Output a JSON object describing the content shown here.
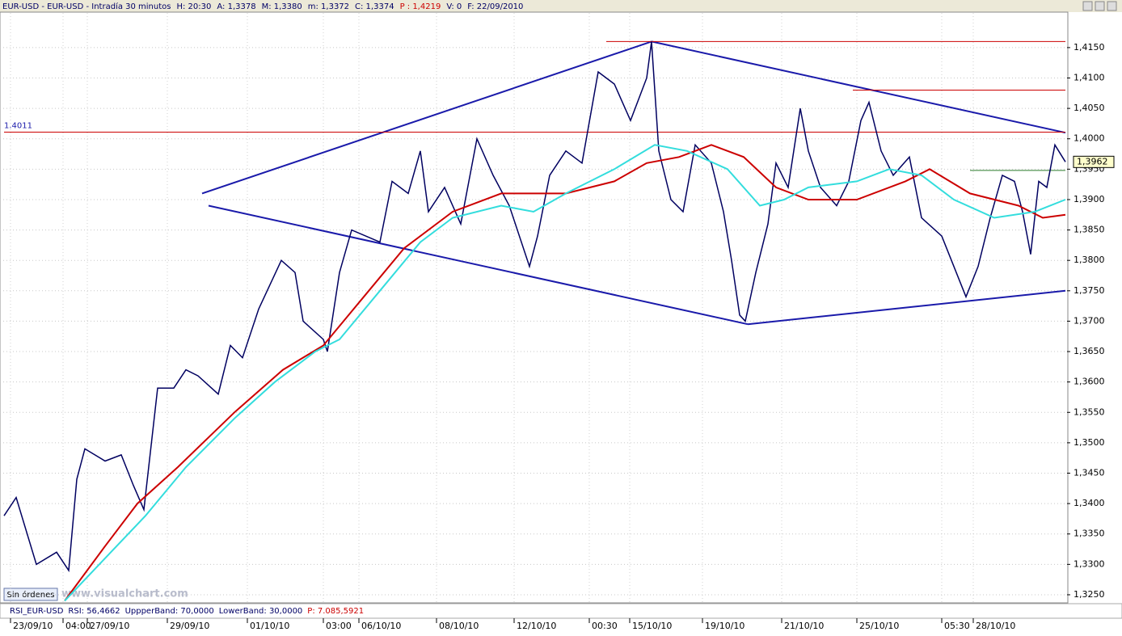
{
  "header": {
    "parts": [
      "EUR-USD - EUR-USD - Intradía 30 minutos",
      "H: 20:30",
      "A: 1,3378",
      "M: 1,3380",
      "m: 1,3372",
      "C: 1,3374",
      "P : 1,4219",
      "V: 0",
      "F: 22/09/2010"
    ]
  },
  "footer": {
    "orders": "Sin órdenes",
    "watermark": "www.visualchart.com",
    "rsi": [
      "RSI_EUR-USD",
      "RSI: 56,4662",
      "UppperBand: 70,0000",
      "LowerBand: 30,0000",
      "P: 7.085,5921"
    ]
  },
  "chart_data": {
    "type": "line",
    "xlim": [
      0,
      1320
    ],
    "ylim": [
      1.3238,
      1.4207
    ],
    "grid": true,
    "xticks": [
      {
        "value": 13,
        "label": "23/09/10"
      },
      {
        "value": 78,
        "label": "04:00"
      },
      {
        "value": 108,
        "label": "27/09/10"
      },
      {
        "value": 207,
        "label": "29/09/10"
      },
      {
        "value": 306,
        "label": "01/10/10"
      },
      {
        "value": 400,
        "label": "03:00"
      },
      {
        "value": 444,
        "label": "06/10/10"
      },
      {
        "value": 540,
        "label": "08/10/10"
      },
      {
        "value": 636,
        "label": "12/10/10"
      },
      {
        "value": 729,
        "label": "00:30"
      },
      {
        "value": 779,
        "label": "15/10/10"
      },
      {
        "value": 869,
        "label": "19/10/10"
      },
      {
        "value": 967,
        "label": "21/10/10"
      },
      {
        "value": 1060,
        "label": "25/10/10"
      },
      {
        "value": 1165,
        "label": "05:30"
      },
      {
        "value": 1204,
        "label": "28/10/10"
      }
    ],
    "yticks": [
      {
        "value": 1.325,
        "label": "1,3250"
      },
      {
        "value": 1.33,
        "label": "1,3300"
      },
      {
        "value": 1.335,
        "label": "1,3350"
      },
      {
        "value": 1.34,
        "label": "1,3400"
      },
      {
        "value": 1.345,
        "label": "1,3450"
      },
      {
        "value": 1.35,
        "label": "1,3500"
      },
      {
        "value": 1.355,
        "label": "1,3550"
      },
      {
        "value": 1.36,
        "label": "1,3600"
      },
      {
        "value": 1.365,
        "label": "1,3650"
      },
      {
        "value": 1.37,
        "label": "1,3700"
      },
      {
        "value": 1.375,
        "label": "1,3750"
      },
      {
        "value": 1.38,
        "label": "1,3800"
      },
      {
        "value": 1.385,
        "label": "1,3850"
      },
      {
        "value": 1.39,
        "label": "1,3900"
      },
      {
        "value": 1.395,
        "label": "1,3950"
      },
      {
        "value": 1.4,
        "label": "1,4000"
      },
      {
        "value": 1.405,
        "label": "1,4050"
      },
      {
        "value": 1.41,
        "label": "1,4100"
      },
      {
        "value": 1.415,
        "label": "1,4150"
      }
    ],
    "series": [
      {
        "color": "#000060",
        "x": [
          5,
          20,
          45,
          70,
          85,
          95,
          105,
          130,
          150,
          165,
          178,
          195,
          215,
          230,
          245,
          270,
          285,
          300,
          320,
          348,
          365,
          375,
          400,
          405,
          420,
          435,
          470,
          485,
          505,
          520,
          530,
          550,
          570,
          590,
          610,
          630,
          655,
          665,
          680,
          700,
          720,
          740,
          760,
          780,
          800,
          806,
          815,
          830,
          845,
          860,
          880,
          895,
          905,
          915,
          922,
          935,
          950,
          960,
          975,
          990,
          1000,
          1015,
          1035,
          1050,
          1065,
          1075,
          1090,
          1105,
          1125,
          1140,
          1165,
          1180,
          1195,
          1210,
          1225,
          1240,
          1255,
          1265,
          1275,
          1285,
          1295,
          1305,
          1318
        ],
        "values": [
          1.338,
          1.341,
          1.33,
          1.332,
          1.329,
          1.344,
          1.349,
          1.347,
          1.348,
          1.343,
          1.339,
          1.359,
          1.359,
          1.362,
          1.361,
          1.358,
          1.366,
          1.364,
          1.372,
          1.38,
          1.378,
          1.37,
          1.367,
          1.365,
          1.378,
          1.385,
          1.383,
          1.393,
          1.391,
          1.398,
          1.388,
          1.392,
          1.386,
          1.4,
          1.394,
          1.389,
          1.379,
          1.384,
          1.394,
          1.398,
          1.396,
          1.411,
          1.409,
          1.403,
          1.41,
          1.416,
          1.398,
          1.39,
          1.388,
          1.399,
          1.396,
          1.388,
          1.38,
          1.371,
          1.37,
          1.378,
          1.386,
          1.396,
          1.392,
          1.405,
          1.398,
          1.392,
          1.389,
          1.393,
          1.403,
          1.406,
          1.398,
          1.394,
          1.397,
          1.387,
          1.384,
          1.379,
          1.374,
          1.379,
          1.387,
          1.394,
          1.393,
          1.388,
          1.381,
          1.393,
          1.392,
          1.399,
          1.3962
        ]
      },
      {
        "color": "#cc0000",
        "x": [
          80,
          130,
          170,
          220,
          290,
          350,
          400,
          450,
          500,
          560,
          620,
          700,
          760,
          800,
          840,
          880,
          920,
          960,
          1000,
          1060,
          1120,
          1150,
          1200,
          1260,
          1290,
          1318
        ],
        "values": [
          1.324,
          1.333,
          1.34,
          1.346,
          1.355,
          1.362,
          1.366,
          1.374,
          1.382,
          1.388,
          1.391,
          1.391,
          1.393,
          1.396,
          1.397,
          1.399,
          1.397,
          1.392,
          1.39,
          1.39,
          1.393,
          1.395,
          1.391,
          1.389,
          1.387,
          1.3875
        ]
      },
      {
        "color": "#33dddd",
        "x": [
          80,
          130,
          180,
          230,
          290,
          340,
          390,
          420,
          470,
          520,
          560,
          620,
          660,
          700,
          760,
          810,
          850,
          900,
          940,
          970,
          1000,
          1060,
          1100,
          1140,
          1180,
          1230,
          1280,
          1318
        ],
        "values": [
          1.324,
          1.331,
          1.338,
          1.346,
          1.354,
          1.36,
          1.365,
          1.367,
          1.375,
          1.383,
          1.387,
          1.389,
          1.388,
          1.391,
          1.395,
          1.399,
          1.398,
          1.395,
          1.389,
          1.39,
          1.392,
          1.393,
          1.395,
          1.394,
          1.39,
          1.387,
          1.388,
          1.39
        ]
      }
    ],
    "lines": [
      {
        "color": "#1a1aaa",
        "x": [
          250,
          806
        ],
        "values": [
          1.391,
          1.416
        ]
      },
      {
        "color": "#1a1aaa",
        "x": [
          806,
          1318
        ],
        "values": [
          1.416,
          1.401
        ]
      },
      {
        "color": "#1a1aaa",
        "x": [
          258,
          925
        ],
        "values": [
          1.389,
          1.3695
        ]
      },
      {
        "color": "#1a1aaa",
        "x": [
          925,
          1318
        ],
        "values": [
          1.3695,
          1.375
        ]
      },
      {
        "color": "#cc0000",
        "x": [
          750,
          1318
        ],
        "values": [
          1.416,
          1.416
        ]
      },
      {
        "color": "#cc0000",
        "x": [
          1055,
          1318
        ],
        "values": [
          1.408,
          1.408
        ]
      },
      {
        "color": "#cc0000",
        "x": [
          5,
          1318
        ],
        "values": [
          1.4011,
          1.4011
        ]
      },
      {
        "color": "#2a7a2a",
        "x": [
          1200,
          1318
        ],
        "values": [
          1.3948,
          1.3948
        ]
      }
    ],
    "annotations": [
      {
        "value": 1.4011,
        "label": "1.4011",
        "color": "#1a1aaa"
      }
    ],
    "last_price": {
      "value": 1.3962,
      "label": "1,3962"
    }
  }
}
